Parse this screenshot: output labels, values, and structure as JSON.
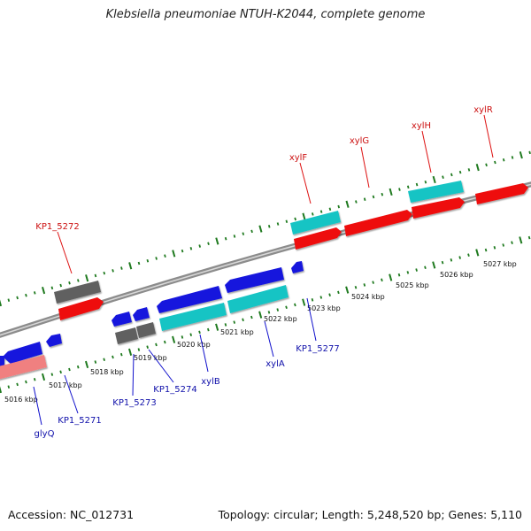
{
  "header": {
    "title": "Klebsiella pneumoniae NTUH-K2044, complete genome"
  },
  "footer": {
    "accession": "Accession: NC_012731",
    "summary": "Topology: circular; Length: 5,248,520 bp; Genes: 5,110"
  },
  "colors": {
    "background": "#ffffff",
    "backbone": "#8c8c8c",
    "ticks": "#1f7a1f",
    "forward_gene": "#ee1111",
    "reverse_gene": "#1414dd",
    "cyan_feature": "#19c4c4",
    "gray_feature": "#606060",
    "pink_feature": "#f08080",
    "forward_label": "#cc1111",
    "reverse_label": "#1010aa"
  },
  "ruler_labels": [
    "5016 kbp",
    "5017 kbp",
    "5018 kbp",
    "5019 kbp",
    "5020 kbp",
    "5021 kbp",
    "5022 kbp",
    "5023 kbp",
    "5024 kbp",
    "5025 kbp",
    "5026 kbp",
    "5027 kbp"
  ],
  "forward_genes": [
    {
      "label": "KP1_5272"
    },
    {
      "label": "xylF"
    },
    {
      "label": "xylG"
    },
    {
      "label": "xylH"
    },
    {
      "label": "xylR"
    }
  ],
  "reverse_genes": [
    {
      "label": "glyQ"
    },
    {
      "label": "KP1_5271"
    },
    {
      "label": "KP1_5273"
    },
    {
      "label": "KP1_5274"
    },
    {
      "label": "xylB"
    },
    {
      "label": "xylA"
    },
    {
      "label": "KP1_5277"
    }
  ]
}
